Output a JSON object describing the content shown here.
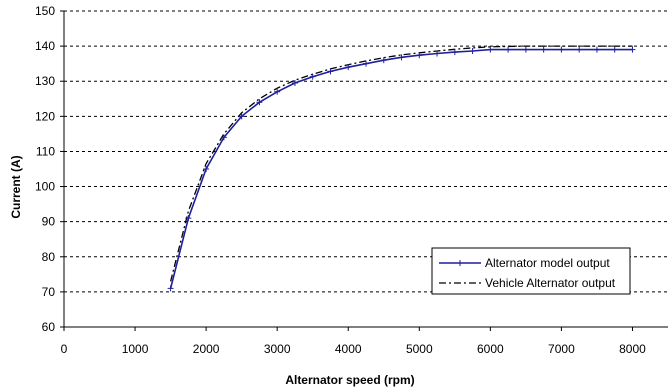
{
  "chart_data": {
    "type": "line",
    "xlabel": "Alternator speed (rpm)",
    "ylabel": "Current (A)",
    "xlim": [
      0,
      8500
    ],
    "ylim": [
      60,
      150
    ],
    "x_ticks": [
      "0",
      "1000",
      "2000",
      "3000",
      "4000",
      "5000",
      "6000",
      "7000",
      "8000"
    ],
    "y_ticks": [
      "60",
      "70",
      "80",
      "90",
      "100",
      "110",
      "120",
      "130",
      "140",
      "150"
    ],
    "grid": "horizontal dashed",
    "legend_position": "bottom-right",
    "series": [
      {
        "name": "Alternator model output",
        "style": "solid with cross markers",
        "color": "#1f1f9e",
        "x": [
          1500,
          1750,
          2000,
          2250,
          2500,
          2750,
          3000,
          3250,
          3500,
          3750,
          4000,
          4250,
          4500,
          4750,
          5000,
          5250,
          5500,
          5750,
          6000,
          6250,
          6500,
          6750,
          7000,
          7250,
          7500,
          7750,
          8000
        ],
        "y": [
          71,
          91,
          105,
          114,
          120,
          124,
          127,
          129.5,
          131.3,
          132.8,
          134,
          135,
          136,
          136.8,
          137.4,
          137.9,
          138.3,
          138.6,
          139,
          139,
          139,
          139,
          139,
          139,
          139,
          139,
          139
        ]
      },
      {
        "name": "Vehicle Alternator output",
        "style": "dash-dot",
        "color": "#000000",
        "x": [
          1500,
          1750,
          2000,
          2250,
          2500,
          2750,
          3000,
          3250,
          3500,
          3750,
          4000,
          4250,
          4500,
          4750,
          5000,
          5250,
          5500,
          5750,
          6000,
          6500,
          7000,
          7500,
          8000
        ],
        "y": [
          73,
          93,
          106.5,
          115,
          121,
          125,
          128,
          130.3,
          132,
          133.5,
          134.7,
          135.8,
          136.7,
          137.5,
          138.1,
          138.6,
          139.1,
          139.5,
          139.8,
          140,
          140,
          140,
          140
        ]
      }
    ]
  }
}
